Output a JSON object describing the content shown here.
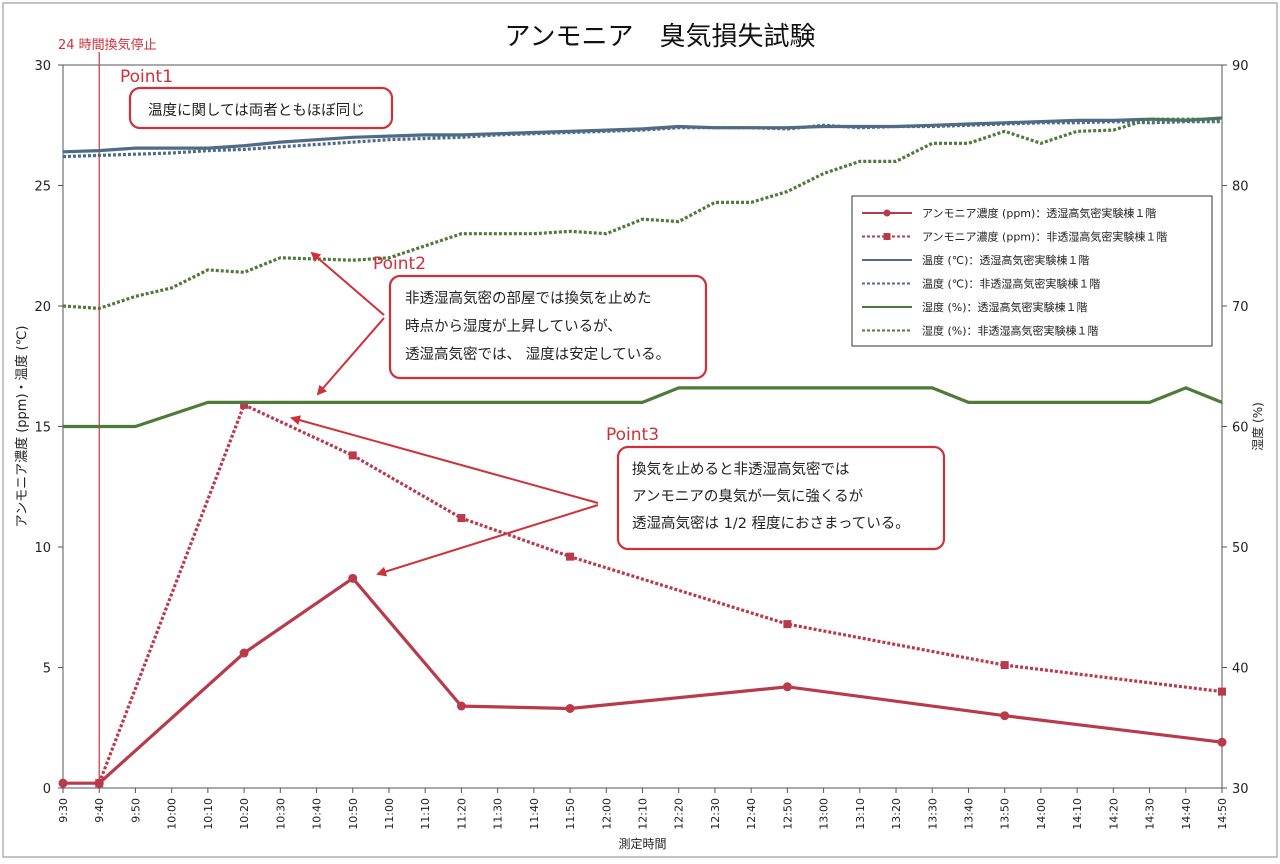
{
  "chart_data": {
    "type": "line",
    "title": "アンモニア　臭気損失試験",
    "xlabel": "測定時間",
    "ylabel_left": "アンモニア濃度 (ppm)・温度 (℃)",
    "ylabel_right": "湿度 (%)",
    "y_left_range": [
      0,
      30
    ],
    "y_left_ticks": [
      "0",
      "5",
      "10",
      "15",
      "20",
      "25",
      "30"
    ],
    "y_right_range": [
      30,
      90
    ],
    "y_right_ticks": [
      "30",
      "40",
      "50",
      "60",
      "70",
      "80",
      "90"
    ],
    "grid": false,
    "x_ticks": [
      "9:30",
      "9:40",
      "9:50",
      "10:00",
      "10:10",
      "10:20",
      "10:30",
      "10:40",
      "10:50",
      "11:00",
      "11:10",
      "11:20",
      "11:30",
      "11:40",
      "11:50",
      "12:00",
      "12:10",
      "12:20",
      "12:30",
      "12:40",
      "12:50",
      "13:00",
      "13:10",
      "13:20",
      "13:30",
      "13:40",
      "13:50",
      "14:00",
      "14:10",
      "14:20",
      "14:30",
      "14:40",
      "14:50"
    ],
    "event": {
      "time": "9:40",
      "label": "24 時間換気停止"
    },
    "legend_position": "right",
    "series": [
      {
        "name": "アンモニア濃度 (ppm)：透湿高気密実験棟１階",
        "axis": "left",
        "color": "#b83a4b",
        "style": "solid-marker-circle",
        "points": [
          [
            "9:30",
            0.2
          ],
          [
            "9:40",
            0.2
          ],
          [
            "10:20",
            5.6
          ],
          [
            "10:50",
            8.7
          ],
          [
            "11:20",
            3.4
          ],
          [
            "11:50",
            3.3
          ],
          [
            "12:50",
            4.2
          ],
          [
            "13:50",
            3.0
          ],
          [
            "14:50",
            1.9
          ]
        ]
      },
      {
        "name": "アンモニア濃度 (ppm)：非透湿高気密実験棟１階",
        "axis": "left",
        "color": "#b83a4b",
        "style": "dotted-marker-square",
        "points": [
          [
            "9:40",
            0.2
          ],
          [
            "10:20",
            15.9
          ],
          [
            "10:50",
            13.8
          ],
          [
            "11:20",
            11.2
          ],
          [
            "11:50",
            9.6
          ],
          [
            "12:50",
            6.8
          ],
          [
            "13:50",
            5.1
          ],
          [
            "14:50",
            4.0
          ]
        ]
      },
      {
        "name": "温度 (℃)：透湿高気密実験棟１階",
        "axis": "left",
        "color": "#4f6b86",
        "style": "solid",
        "points": [
          [
            "9:30",
            26.4
          ],
          [
            "9:40",
            26.45
          ],
          [
            "9:50",
            26.55
          ],
          [
            "10:00",
            26.55
          ],
          [
            "10:10",
            26.55
          ],
          [
            "10:20",
            26.65
          ],
          [
            "10:30",
            26.8
          ],
          [
            "10:40",
            26.9
          ],
          [
            "10:50",
            27.0
          ],
          [
            "11:00",
            27.05
          ],
          [
            "11:10",
            27.1
          ],
          [
            "11:20",
            27.1
          ],
          [
            "11:30",
            27.15
          ],
          [
            "11:40",
            27.2
          ],
          [
            "11:50",
            27.25
          ],
          [
            "12:00",
            27.3
          ],
          [
            "12:10",
            27.35
          ],
          [
            "12:20",
            27.45
          ],
          [
            "12:30",
            27.4
          ],
          [
            "12:40",
            27.4
          ],
          [
            "12:50",
            27.4
          ],
          [
            "13:00",
            27.45
          ],
          [
            "13:10",
            27.45
          ],
          [
            "13:20",
            27.45
          ],
          [
            "13:30",
            27.5
          ],
          [
            "13:40",
            27.55
          ],
          [
            "13:50",
            27.6
          ],
          [
            "14:00",
            27.65
          ],
          [
            "14:10",
            27.7
          ],
          [
            "14:20",
            27.7
          ],
          [
            "14:30",
            27.75
          ],
          [
            "14:40",
            27.7
          ],
          [
            "14:50",
            27.8
          ]
        ]
      },
      {
        "name": "温度 (℃)：非透湿高気密実験棟１階",
        "axis": "left",
        "color": "#4f6b86",
        "style": "dotted",
        "points": [
          [
            "9:30",
            26.2
          ],
          [
            "9:40",
            26.25
          ],
          [
            "9:50",
            26.3
          ],
          [
            "10:00",
            26.35
          ],
          [
            "10:10",
            26.45
          ],
          [
            "10:20",
            26.5
          ],
          [
            "10:30",
            26.6
          ],
          [
            "10:40",
            26.7
          ],
          [
            "10:50",
            26.8
          ],
          [
            "11:00",
            26.9
          ],
          [
            "11:10",
            26.95
          ],
          [
            "11:20",
            27.0
          ],
          [
            "11:30",
            27.1
          ],
          [
            "11:40",
            27.15
          ],
          [
            "11:50",
            27.2
          ],
          [
            "12:00",
            27.25
          ],
          [
            "12:10",
            27.3
          ],
          [
            "12:20",
            27.4
          ],
          [
            "12:30",
            27.4
          ],
          [
            "12:40",
            27.4
          ],
          [
            "12:50",
            27.35
          ],
          [
            "13:00",
            27.5
          ],
          [
            "13:10",
            27.4
          ],
          [
            "13:20",
            27.45
          ],
          [
            "13:30",
            27.45
          ],
          [
            "13:40",
            27.5
          ],
          [
            "13:50",
            27.55
          ],
          [
            "14:00",
            27.6
          ],
          [
            "14:10",
            27.6
          ],
          [
            "14:20",
            27.65
          ],
          [
            "14:30",
            27.6
          ],
          [
            "14:40",
            27.65
          ],
          [
            "14:50",
            27.65
          ]
        ]
      },
      {
        "name": "湿度 (%)：透湿高気密実験棟１階",
        "axis": "right",
        "color": "#4e7a3a",
        "style": "solid",
        "points": [
          [
            "9:30",
            60
          ],
          [
            "9:40",
            60
          ],
          [
            "9:50",
            60
          ],
          [
            "10:10",
            62
          ],
          [
            "10:20",
            62
          ],
          [
            "10:30",
            62
          ],
          [
            "11:00",
            62
          ],
          [
            "11:30",
            62
          ],
          [
            "12:00",
            62
          ],
          [
            "12:10",
            62
          ],
          [
            "12:20",
            63.2
          ],
          [
            "13:30",
            63.2
          ],
          [
            "13:40",
            62
          ],
          [
            "14:00",
            62
          ],
          [
            "14:30",
            62
          ],
          [
            "14:40",
            63.2
          ],
          [
            "14:50",
            62
          ]
        ]
      },
      {
        "name": "湿度 (%)：非透湿高気密実験棟１階",
        "axis": "right",
        "color": "#4e7a3a",
        "style": "dotted",
        "points": [
          [
            "9:30",
            70
          ],
          [
            "9:40",
            69.8
          ],
          [
            "9:50",
            70.8
          ],
          [
            "10:00",
            71.5
          ],
          [
            "10:10",
            73
          ],
          [
            "10:20",
            72.8
          ],
          [
            "10:30",
            74
          ],
          [
            "10:40",
            73.9
          ],
          [
            "10:50",
            73.8
          ],
          [
            "11:00",
            74
          ],
          [
            "11:10",
            75
          ],
          [
            "11:20",
            76
          ],
          [
            "11:30",
            76
          ],
          [
            "11:40",
            76
          ],
          [
            "11:50",
            76.2
          ],
          [
            "12:00",
            76
          ],
          [
            "12:10",
            77.2
          ],
          [
            "12:20",
            77
          ],
          [
            "12:30",
            78.6
          ],
          [
            "12:40",
            78.6
          ],
          [
            "12:50",
            79.5
          ],
          [
            "13:00",
            81
          ],
          [
            "13:10",
            82
          ],
          [
            "13:20",
            82
          ],
          [
            "13:30",
            83.5
          ],
          [
            "13:40",
            83.5
          ],
          [
            "13:50",
            84.5
          ],
          [
            "14:00",
            83.5
          ],
          [
            "14:10",
            84.5
          ],
          [
            "14:20",
            84.6
          ],
          [
            "14:30",
            85.5
          ],
          [
            "14:40",
            85.5
          ],
          [
            "14:50",
            85.5
          ]
        ]
      }
    ]
  },
  "callouts": [
    {
      "title": "Point1",
      "lines": [
        "温度に関しては両者ともほぼ同じ"
      ]
    },
    {
      "title": "Point2",
      "lines": [
        "非透湿高気密の部屋では換気を止めた",
        "時点から湿度が上昇しているが、",
        "透湿高気密では、 湿度は安定している。"
      ]
    },
    {
      "title": "Point3",
      "lines": [
        "換気を止めると非透湿高気密では",
        "アンモニアの臭気が一気に強くるが",
        "透湿高気密は 1/2 程度におさまっている。"
      ]
    }
  ],
  "colors": {
    "accent_red": "#d0303a",
    "ammonia": "#b83a4b",
    "temperature": "#4f6b86",
    "humidity": "#4e7a3a"
  }
}
